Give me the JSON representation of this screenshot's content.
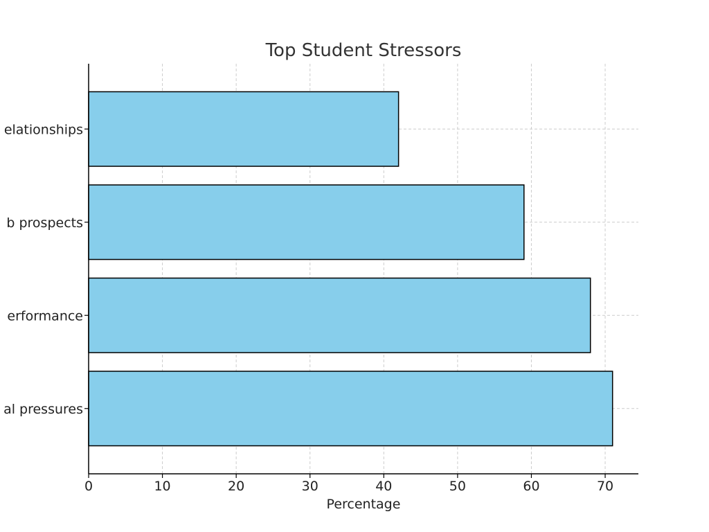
{
  "chart_data": {
    "type": "bar",
    "orientation": "horizontal",
    "title": "Top Student Stressors",
    "xlabel": "Percentage",
    "ylabel": "",
    "categories": [
      "Social pressures",
      "Academic performance",
      "Job prospects",
      "Relationships"
    ],
    "category_labels_visible": [
      "al pressures",
      "erformance",
      "b prospects",
      "elationships"
    ],
    "values": [
      71,
      68,
      59,
      42
    ],
    "xlim": [
      0,
      74.5
    ],
    "xticks": [
      0,
      10,
      20,
      30,
      40,
      50,
      60,
      70
    ],
    "grid": true,
    "bar_color": "#87CEEB",
    "edge_color": "#000000"
  }
}
